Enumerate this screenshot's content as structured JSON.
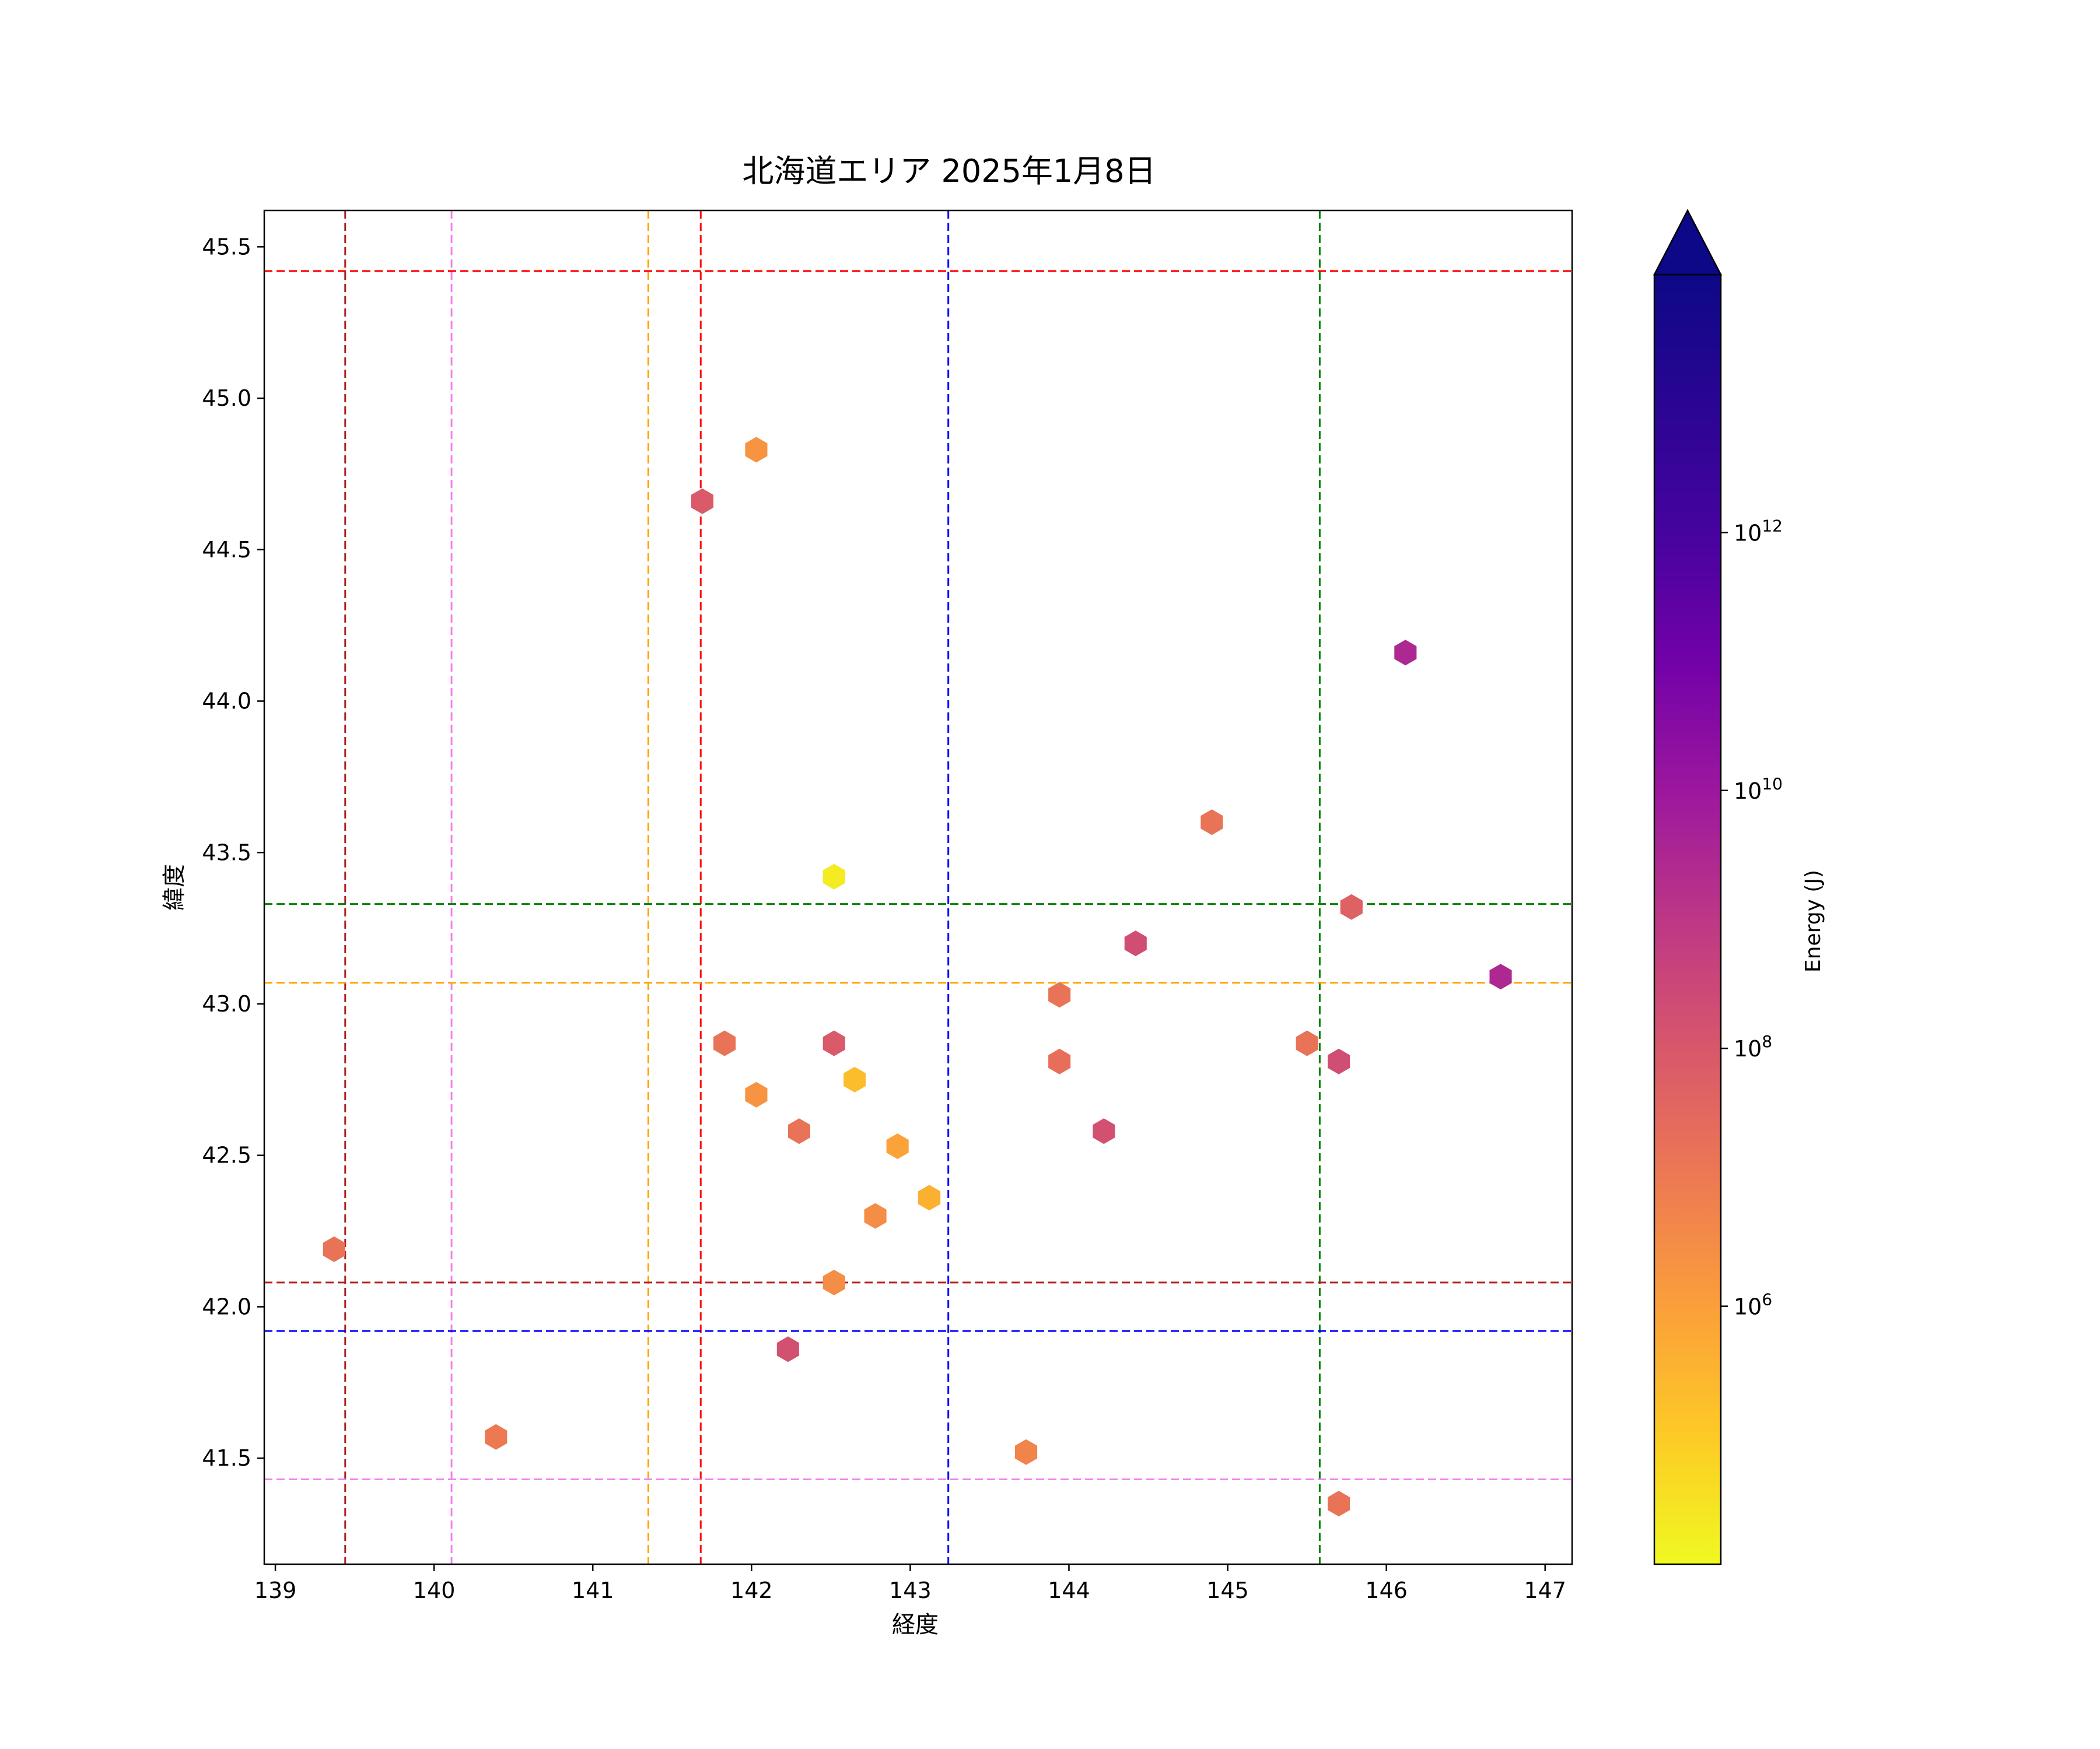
{
  "chart_data": {
    "type": "scatter",
    "title": "北海道エリア 2025年1月8日",
    "xlabel": "経度",
    "ylabel": "緯度",
    "xlim": [
      138.93,
      147.17
    ],
    "ylim": [
      41.15,
      45.62
    ],
    "xticks": [
      139,
      140,
      141,
      142,
      143,
      144,
      145,
      146,
      147
    ],
    "yticks": [
      41.5,
      42.0,
      42.5,
      43.0,
      43.5,
      44.0,
      44.5,
      45.0,
      45.5
    ],
    "colorbar": {
      "label": "Energy (J)",
      "scale": "log",
      "colormap": "plasma_r",
      "range": [
        10000.0,
        100000000000000.0
      ],
      "extend": "max",
      "ticks": [
        {
          "value": 1000000.0,
          "base": "10",
          "exp": "6"
        },
        {
          "value": 100000000.0,
          "base": "10",
          "exp": "8"
        },
        {
          "value": 10000000000.0,
          "base": "10",
          "exp": "10"
        },
        {
          "value": 1000000000000.0,
          "base": "10",
          "exp": "12"
        }
      ]
    },
    "vlines": [
      {
        "x": 139.44,
        "color": "#b22222"
      },
      {
        "x": 140.11,
        "color": "#ee82ee"
      },
      {
        "x": 141.35,
        "color": "#ffa500"
      },
      {
        "x": 141.68,
        "color": "#ff0000"
      },
      {
        "x": 143.24,
        "color": "#0000ff"
      },
      {
        "x": 145.58,
        "color": "#008000"
      }
    ],
    "hlines": [
      {
        "y": 45.42,
        "color": "#ff0000"
      },
      {
        "y": 43.33,
        "color": "#008000"
      },
      {
        "y": 43.07,
        "color": "#ffa500"
      },
      {
        "y": 42.08,
        "color": "#b22222"
      },
      {
        "y": 41.92,
        "color": "#0000ff"
      },
      {
        "y": 41.43,
        "color": "#ee82ee"
      }
    ],
    "points": [
      {
        "x": 142.03,
        "y": 44.83,
        "energy": 2000000.0
      },
      {
        "x": 141.69,
        "y": 44.66,
        "energy": 80000000.0
      },
      {
        "x": 146.12,
        "y": 44.16,
        "energy": 3000000000.0
      },
      {
        "x": 144.9,
        "y": 43.6,
        "energy": 15000000.0
      },
      {
        "x": 142.52,
        "y": 43.42,
        "energy": 20000.0
      },
      {
        "x": 145.78,
        "y": 43.32,
        "energy": 50000000.0
      },
      {
        "x": 144.42,
        "y": 43.2,
        "energy": 200000000.0
      },
      {
        "x": 146.72,
        "y": 43.09,
        "energy": 3000000000.0
      },
      {
        "x": 143.94,
        "y": 43.03,
        "energy": 15000000.0
      },
      {
        "x": 141.83,
        "y": 42.87,
        "energy": 15000000.0
      },
      {
        "x": 142.52,
        "y": 42.87,
        "energy": 80000000.0
      },
      {
        "x": 145.5,
        "y": 42.87,
        "energy": 15000000.0
      },
      {
        "x": 143.94,
        "y": 42.81,
        "energy": 20000000.0
      },
      {
        "x": 145.7,
        "y": 42.81,
        "energy": 200000000.0
      },
      {
        "x": 142.65,
        "y": 42.75,
        "energy": 200000.0
      },
      {
        "x": 142.03,
        "y": 42.7,
        "energy": 2000000.0
      },
      {
        "x": 142.3,
        "y": 42.58,
        "energy": 15000000.0
      },
      {
        "x": 144.22,
        "y": 42.58,
        "energy": 150000000.0
      },
      {
        "x": 142.92,
        "y": 42.53,
        "energy": 800000.0
      },
      {
        "x": 143.12,
        "y": 42.36,
        "energy": 400000.0
      },
      {
        "x": 142.78,
        "y": 42.3,
        "energy": 3000000.0
      },
      {
        "x": 139.37,
        "y": 42.19,
        "energy": 15000000.0
      },
      {
        "x": 142.52,
        "y": 42.08,
        "energy": 3000000.0
      },
      {
        "x": 142.23,
        "y": 41.86,
        "energy": 150000000.0
      },
      {
        "x": 140.39,
        "y": 41.57,
        "energy": 10000000.0
      },
      {
        "x": 143.73,
        "y": 41.52,
        "energy": 5000000.0
      },
      {
        "x": 145.7,
        "y": 41.35,
        "energy": 15000000.0
      }
    ]
  }
}
